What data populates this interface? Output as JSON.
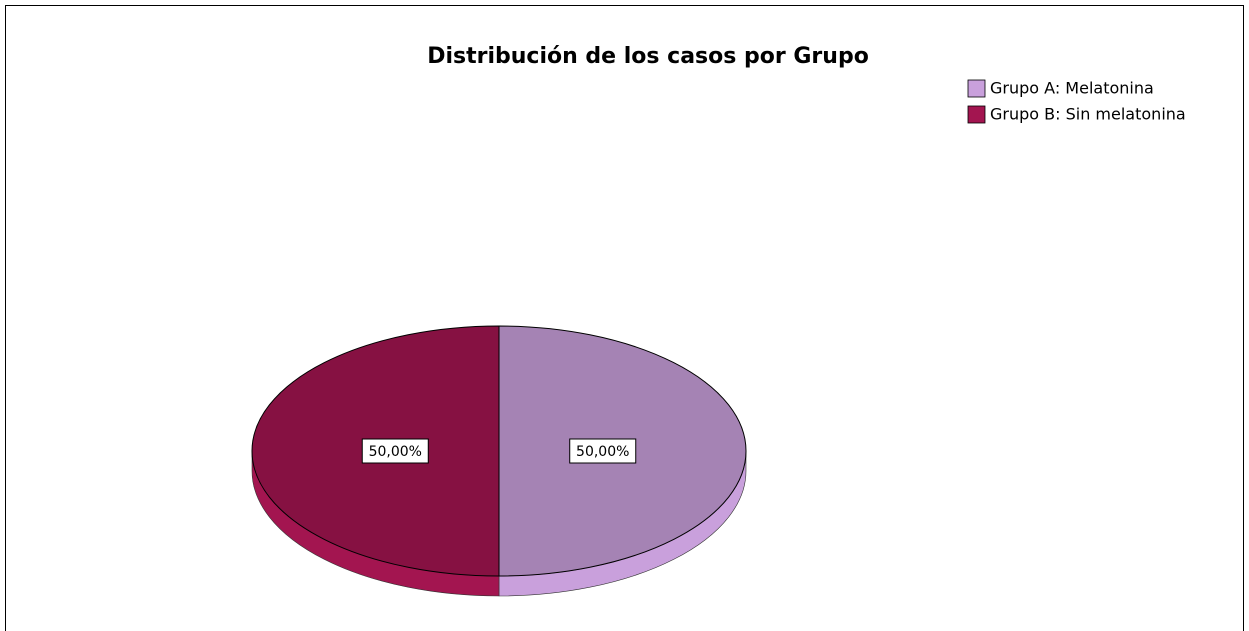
{
  "chart_data": {
    "type": "pie",
    "title": "Distribución de los casos por Grupo",
    "categories": [
      "Grupo A: Melatonina",
      "Grupo B: Sin melatonina"
    ],
    "values": [
      50,
      50
    ],
    "value_labels": [
      "50,00%",
      "50,00%"
    ],
    "colors": [
      "#c9a0dc",
      "#a31550"
    ],
    "legend": "top-right"
  }
}
